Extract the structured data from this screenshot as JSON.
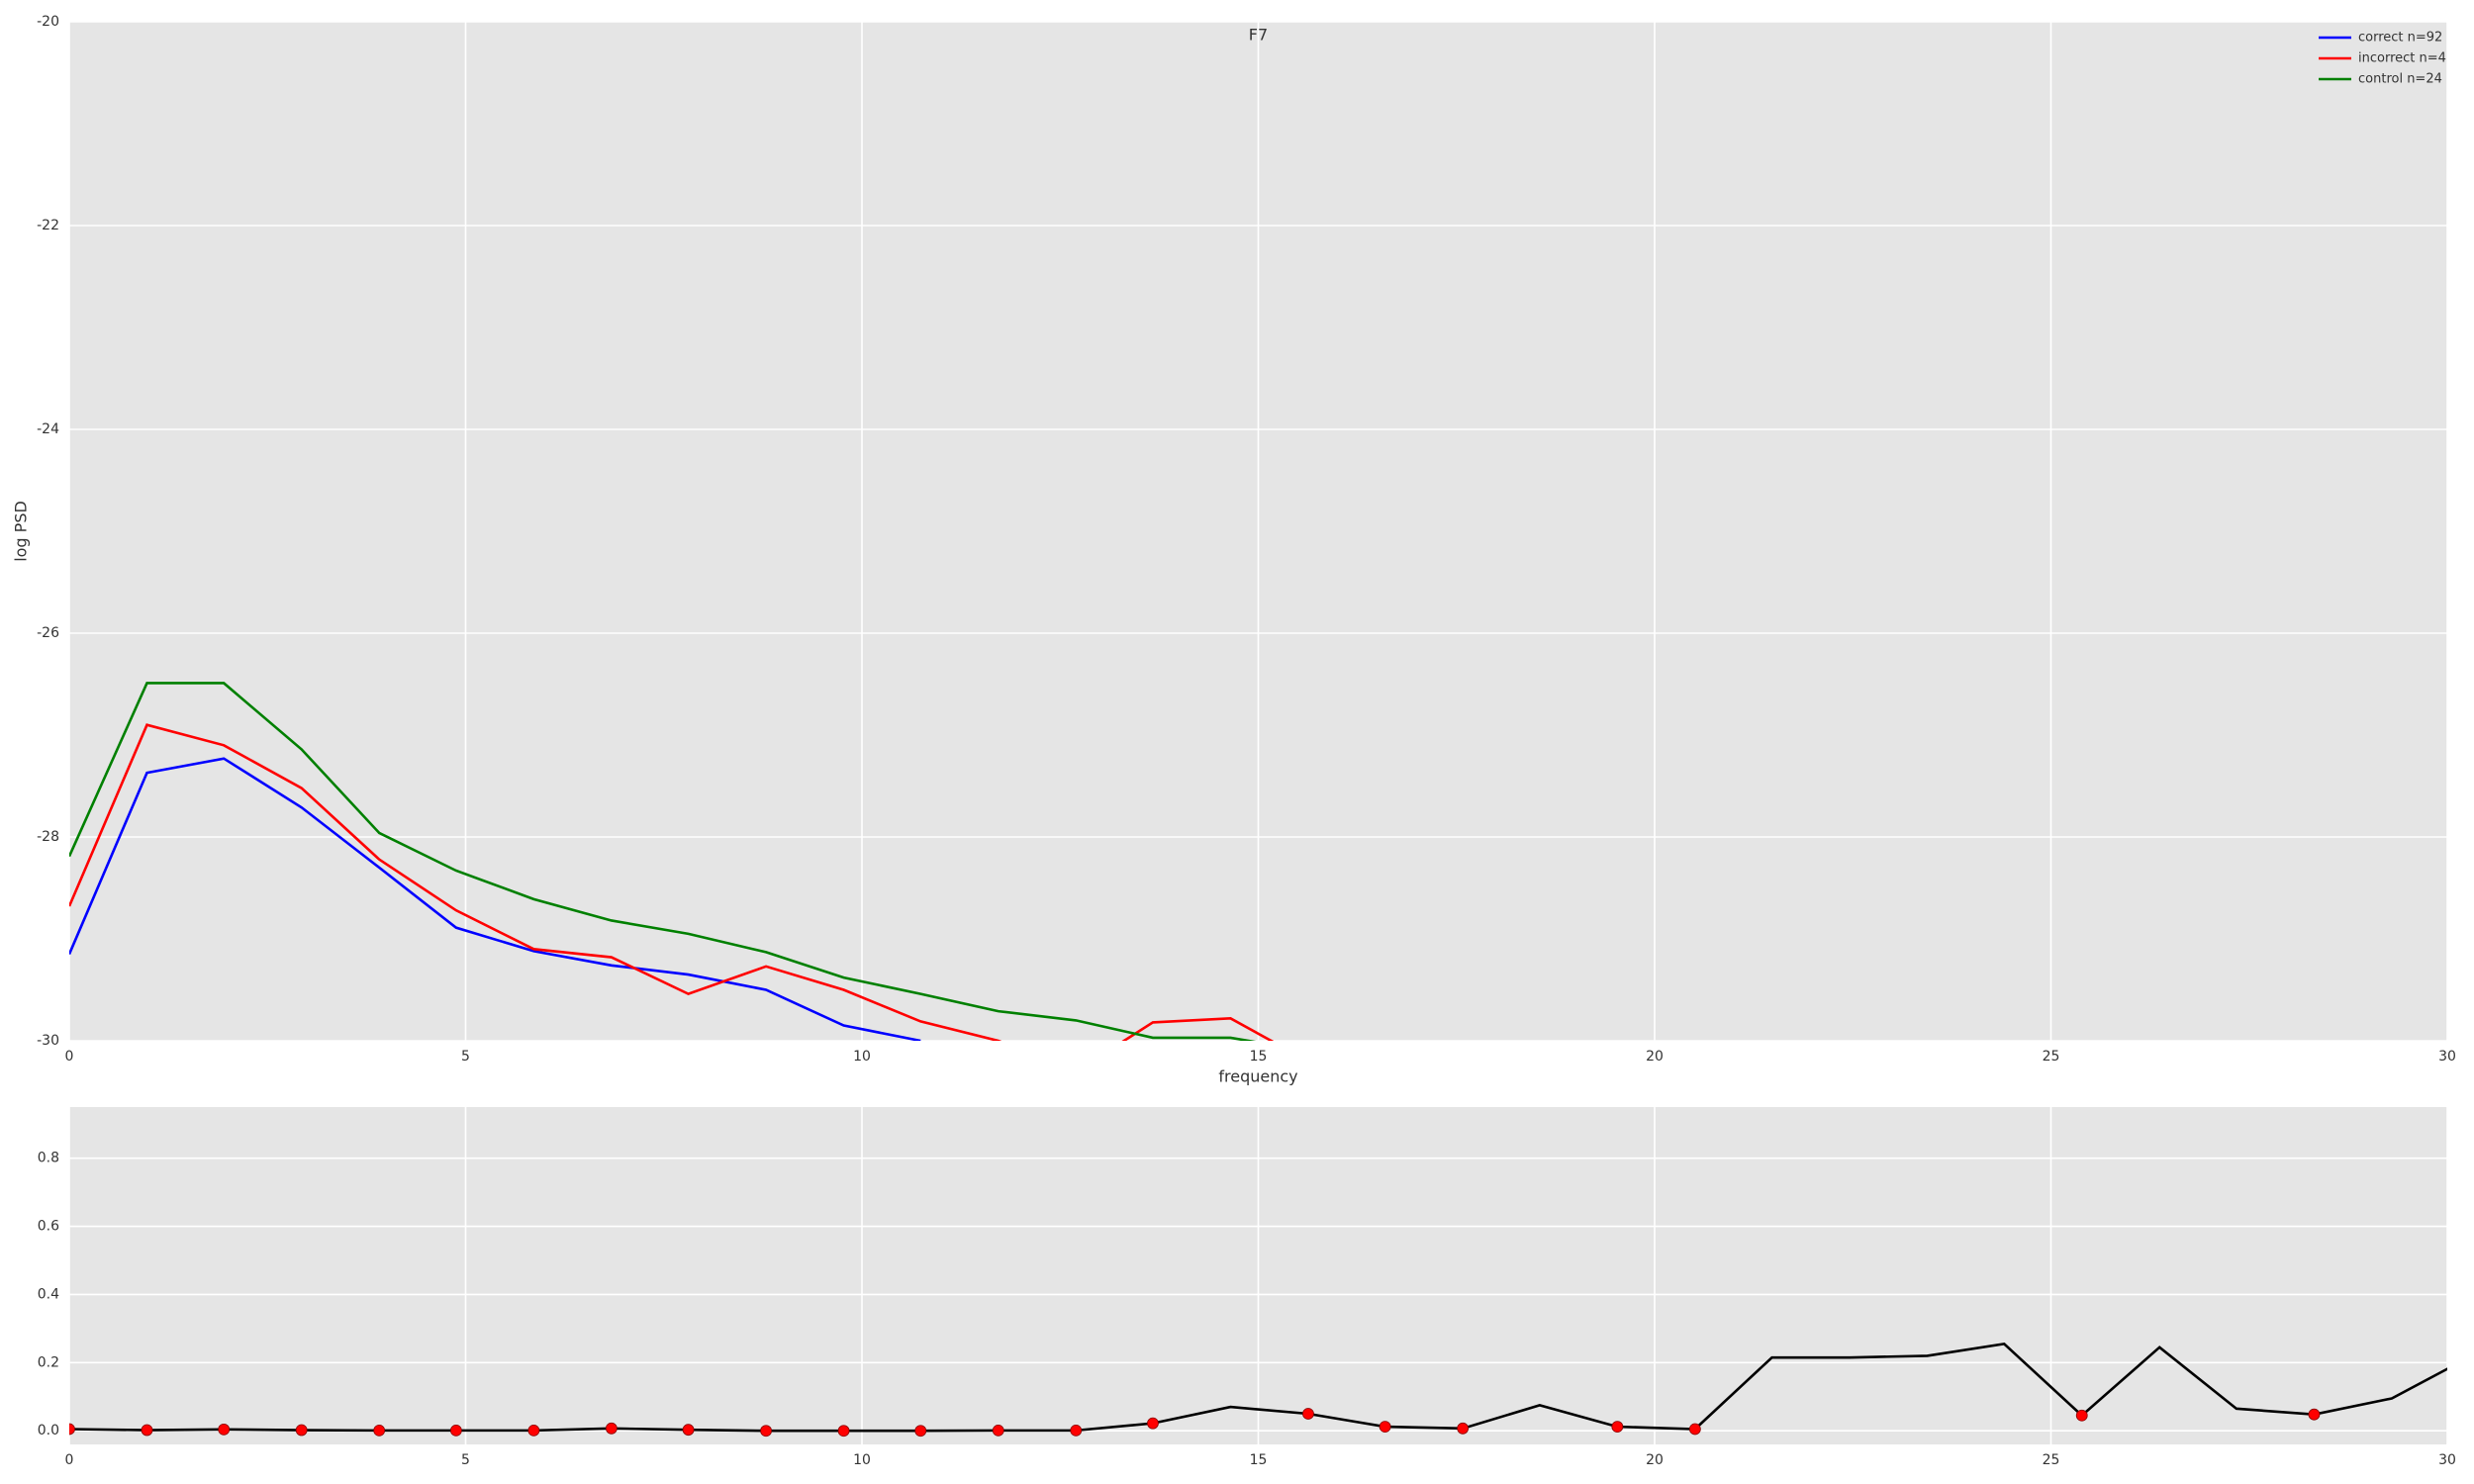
{
  "chart_data": [
    {
      "type": "line",
      "title": "F7",
      "xlabel": "frequency",
      "ylabel": "log PSD",
      "x": [
        0,
        0.98,
        1.95,
        2.93,
        3.91,
        4.88,
        5.86,
        6.84,
        7.81,
        8.79,
        9.77,
        10.74,
        11.72,
        12.7,
        13.67,
        14.65,
        15.63,
        16.6,
        17.58,
        18.55,
        19.53,
        20.51,
        21.48,
        22.46,
        23.44,
        24.41,
        25.39,
        26.37,
        27.34,
        28.32,
        29.3,
        30.27
      ],
      "series": [
        {
          "name": "correct n=92",
          "color": "#0000ff",
          "values": [
            -29.15,
            -27.37,
            -27.23,
            -27.71,
            -28.3,
            -28.89,
            -29.12,
            -29.26,
            -29.35,
            -29.5,
            -29.85,
            -30.0,
            null,
            null,
            null,
            null,
            null,
            null,
            null,
            null,
            null,
            null,
            null,
            null,
            null,
            null,
            null,
            null,
            null,
            null,
            null,
            null
          ]
        },
        {
          "name": "incorrect n=4",
          "color": "#ff0000",
          "values": [
            -28.68,
            -26.9,
            -27.1,
            -27.52,
            -28.22,
            -28.72,
            -29.1,
            -29.18,
            -29.54,
            -29.27,
            -29.5,
            -29.81,
            -30.0,
            -30.3,
            -29.82,
            -29.78,
            -30.2,
            null,
            null,
            null,
            null,
            null,
            null,
            null,
            null,
            null,
            null,
            null,
            null,
            null,
            null,
            null
          ]
        },
        {
          "name": "control n=24",
          "color": "#008000",
          "values": [
            -28.19,
            -26.49,
            -26.49,
            -27.14,
            -27.96,
            -28.33,
            -28.61,
            -28.82,
            -28.95,
            -29.13,
            -29.38,
            -29.54,
            -29.71,
            -29.8,
            -29.97,
            -29.97,
            -30.1,
            null,
            null,
            null,
            null,
            null,
            null,
            null,
            null,
            null,
            null,
            null,
            null,
            null,
            null,
            null
          ]
        }
      ],
      "xlim": [
        0,
        30
      ],
      "xticks": [
        0,
        5,
        10,
        15,
        20,
        25,
        30
      ],
      "ylim": [
        -30,
        -20
      ],
      "yticks": [
        -30,
        -28,
        -26,
        -24,
        -22,
        -20
      ],
      "grid": true,
      "legend": "upper-right"
    },
    {
      "type": "line",
      "x": [
        0,
        0.98,
        1.95,
        2.93,
        3.91,
        4.88,
        5.86,
        6.84,
        7.81,
        8.79,
        9.77,
        10.74,
        11.72,
        12.7,
        13.67,
        14.65,
        15.63,
        16.6,
        17.58,
        18.55,
        19.53,
        20.51,
        21.48,
        22.46,
        23.44,
        24.41,
        25.39,
        26.37,
        27.34,
        28.32,
        29.3,
        30.27
      ],
      "series": [
        {
          "color": "#000000",
          "values": [
            0.005,
            0.002,
            0.004,
            0.002,
            0.001,
            0.001,
            0.001,
            0.007,
            0.003,
            0.0,
            0.0,
            0.0,
            0.001,
            0.001,
            0.022,
            0.07,
            0.05,
            0.012,
            0.007,
            0.075,
            0.012,
            0.005,
            0.215,
            0.215,
            0.22,
            0.255,
            0.045,
            0.245,
            0.065,
            0.048,
            0.095,
            0.215
          ]
        },
        {
          "color": "#ff0000",
          "marker": "o",
          "line": false,
          "values": [
            0.005,
            0.002,
            0.004,
            0.002,
            0.001,
            0.001,
            0.001,
            0.007,
            0.003,
            0.0,
            0.0,
            0.0,
            0.001,
            0.001,
            0.022,
            null,
            0.05,
            0.012,
            0.007,
            null,
            0.012,
            0.005,
            null,
            null,
            null,
            null,
            0.045,
            null,
            null,
            0.048,
            null,
            null
          ]
        }
      ],
      "xlim": [
        0,
        30
      ],
      "xticks": [
        0,
        5,
        10,
        15,
        20,
        25,
        30
      ],
      "ylim": [
        -0.04,
        0.95
      ],
      "yticks": [
        {
          "value": 0,
          "label": "0.0"
        },
        {
          "value": 0.2,
          "label": "0.2"
        },
        {
          "value": 0.4,
          "label": "0.4"
        },
        {
          "value": 0.6,
          "label": "0.6"
        },
        {
          "value": 0.8,
          "label": "0.8"
        }
      ],
      "grid": true
    }
  ]
}
